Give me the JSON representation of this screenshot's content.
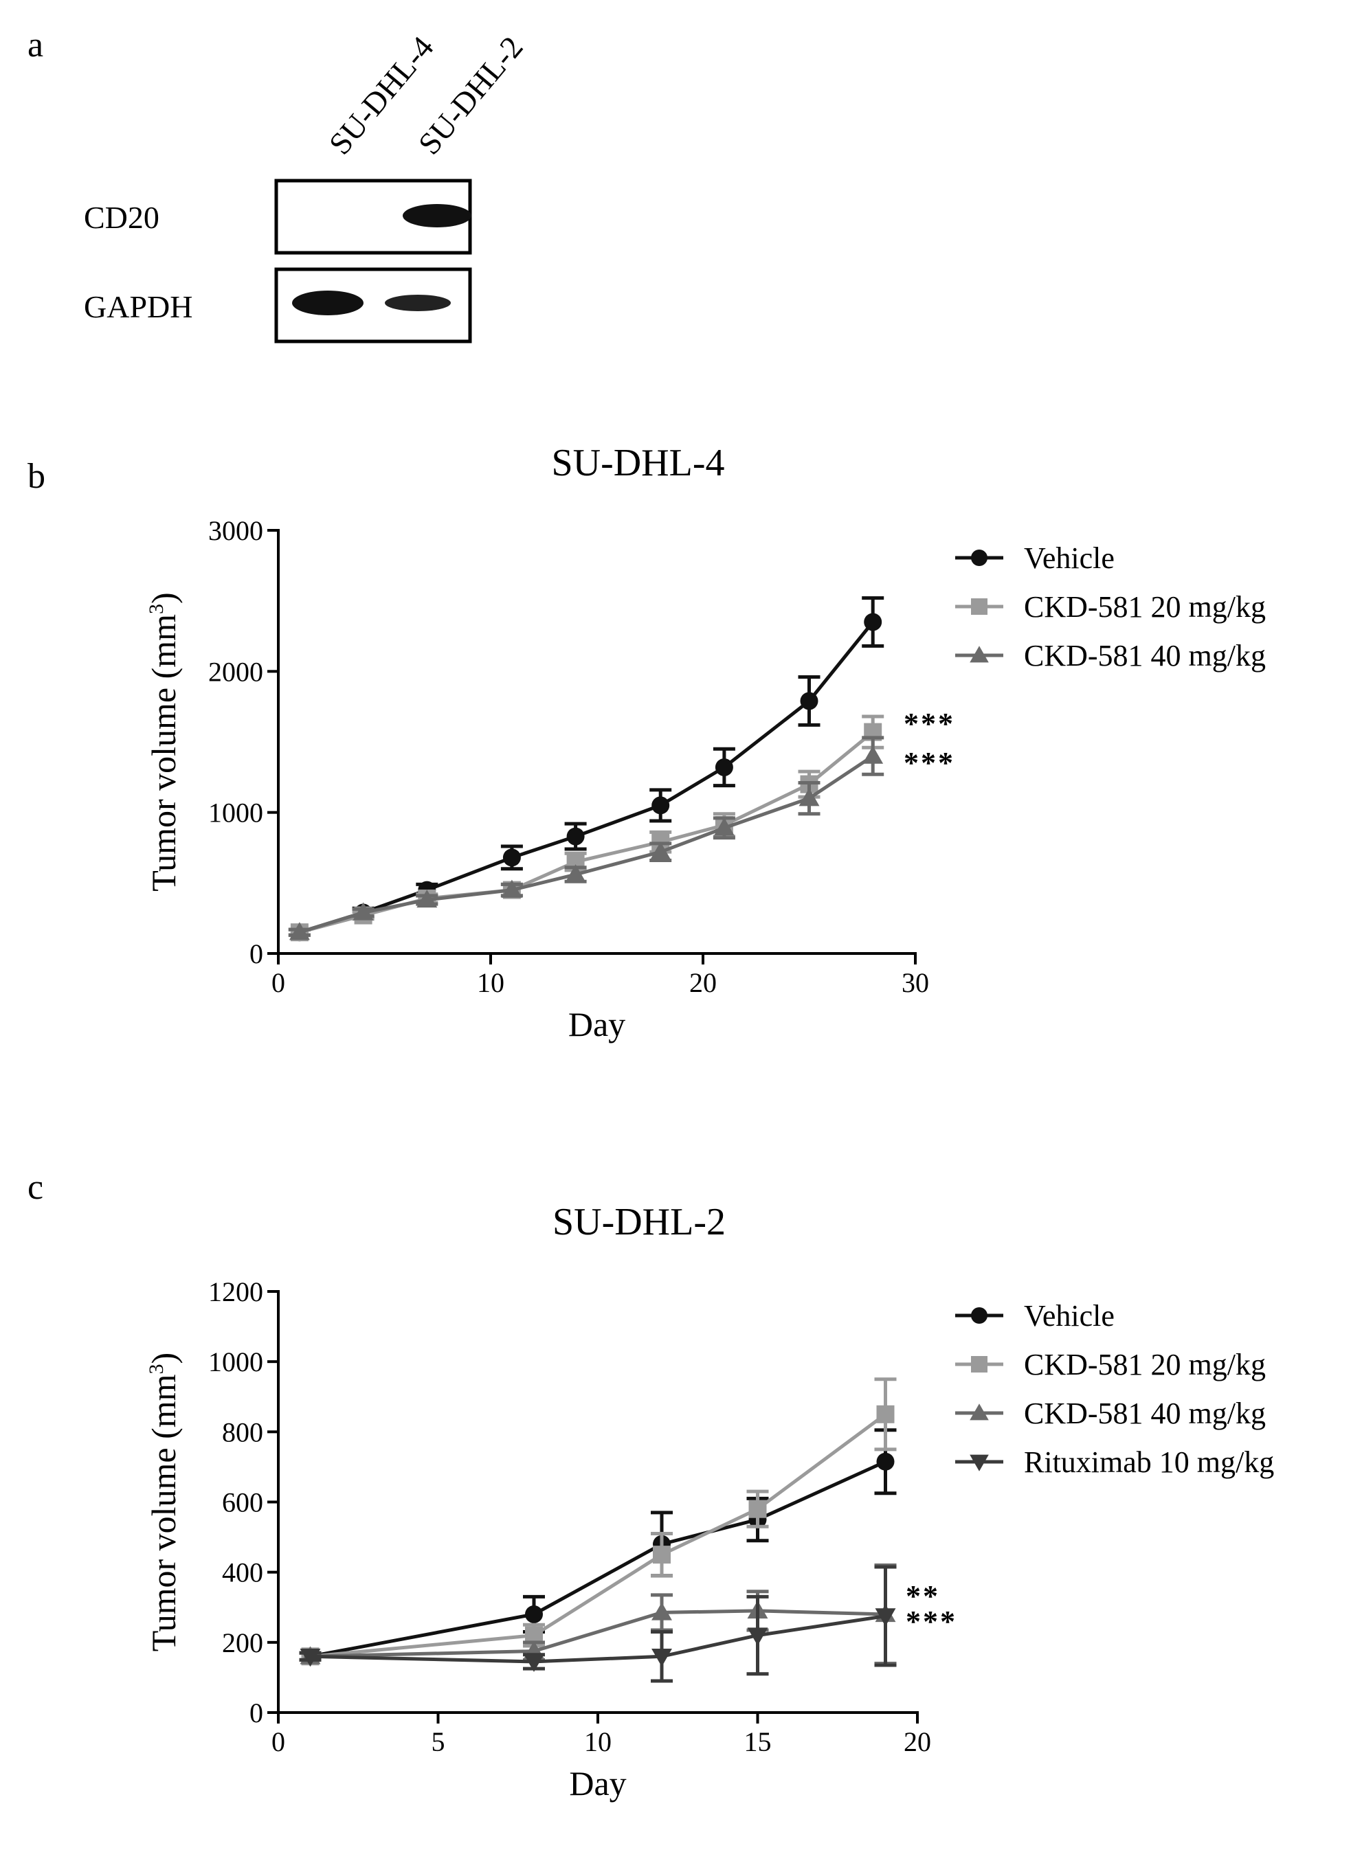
{
  "panel_a": {
    "letter": "a",
    "lanes": [
      "SU-DHL-4",
      "SU-DHL-2"
    ],
    "rows": [
      {
        "label": "CD20",
        "band_intensity": [
          0.0,
          1.0
        ]
      },
      {
        "label": "GAPDH",
        "band_intensity": [
          1.0,
          0.7
        ]
      }
    ]
  },
  "panel_b": {
    "letter": "b"
  },
  "panel_c": {
    "letter": "c"
  },
  "colors": {
    "vehicle": "#111111",
    "ckd20": "#9a9a9a",
    "ckd40": "#6a6a6a",
    "rituximab": "#3a3a3a"
  },
  "chart_data": [
    {
      "type": "line",
      "title": "SU-DHL-4",
      "xlabel": "Day",
      "ylabel": "Tumor volume (mm",
      "ylabel_sup": "3",
      "ylabel_close": ")",
      "xlim": [
        0,
        30
      ],
      "ylim": [
        0,
        3000
      ],
      "xticks": [
        0,
        10,
        20,
        30
      ],
      "yticks": [
        0,
        1000,
        2000,
        3000
      ],
      "grid": false,
      "legend_position": "right",
      "series": [
        {
          "name": "Vehicle",
          "marker": "circle",
          "color": "#111111",
          "x": [
            1,
            4,
            7,
            11,
            14,
            18,
            21,
            25,
            28
          ],
          "y": [
            150,
            290,
            450,
            680,
            830,
            1050,
            1320,
            1790,
            2350
          ],
          "err": [
            20,
            30,
            40,
            80,
            90,
            110,
            130,
            170,
            170
          ]
        },
        {
          "name": "CKD-581 20 mg/kg",
          "marker": "square",
          "color": "#9a9a9a",
          "x": [
            1,
            4,
            7,
            11,
            14,
            18,
            21,
            25,
            28
          ],
          "y": [
            150,
            270,
            390,
            450,
            650,
            790,
            910,
            1200,
            1570
          ],
          "err": [
            20,
            25,
            30,
            40,
            60,
            70,
            80,
            90,
            110
          ]
        },
        {
          "name": "CKD-581 40 mg/kg",
          "marker": "triangle-up",
          "color": "#6a6a6a",
          "x": [
            1,
            4,
            7,
            11,
            14,
            18,
            21,
            25,
            28
          ],
          "y": [
            150,
            290,
            380,
            450,
            560,
            720,
            890,
            1100,
            1400
          ],
          "err": [
            20,
            25,
            30,
            40,
            50,
            60,
            70,
            110,
            130
          ]
        }
      ],
      "annotations": [
        "***",
        "***"
      ]
    },
    {
      "type": "line",
      "title": "SU-DHL-2",
      "xlabel": "Day",
      "ylabel": "Tumor volume (mm",
      "ylabel_sup": "3",
      "ylabel_close": ")",
      "xlim": [
        0,
        20
      ],
      "ylim": [
        0,
        1200
      ],
      "xticks": [
        0,
        5,
        10,
        15,
        20
      ],
      "yticks": [
        0,
        200,
        400,
        600,
        800,
        1000,
        1200
      ],
      "grid": false,
      "legend_position": "right",
      "series": [
        {
          "name": "Vehicle",
          "marker": "circle",
          "color": "#111111",
          "x": [
            1,
            8,
            12,
            15,
            19
          ],
          "y": [
            160,
            280,
            480,
            550,
            715
          ],
          "err": [
            10,
            50,
            90,
            60,
            90
          ]
        },
        {
          "name": "CKD-581 20 mg/kg",
          "marker": "square",
          "color": "#9a9a9a",
          "x": [
            1,
            8,
            12,
            15,
            19
          ],
          "y": [
            160,
            220,
            450,
            580,
            850
          ],
          "err": [
            10,
            30,
            60,
            50,
            100
          ]
        },
        {
          "name": "CKD-581 40 mg/kg",
          "marker": "triangle-up",
          "color": "#6a6a6a",
          "x": [
            1,
            8,
            12,
            15,
            19
          ],
          "y": [
            160,
            175,
            285,
            290,
            280
          ],
          "err": [
            10,
            25,
            50,
            55,
            140
          ]
        },
        {
          "name": "Rituximab 10 mg/kg",
          "marker": "triangle-down",
          "color": "#3a3a3a",
          "x": [
            1,
            8,
            12,
            15,
            19
          ],
          "y": [
            160,
            145,
            160,
            220,
            275
          ],
          "err": [
            10,
            20,
            70,
            110,
            140
          ]
        }
      ],
      "annotations": [
        "**",
        "***"
      ]
    }
  ]
}
